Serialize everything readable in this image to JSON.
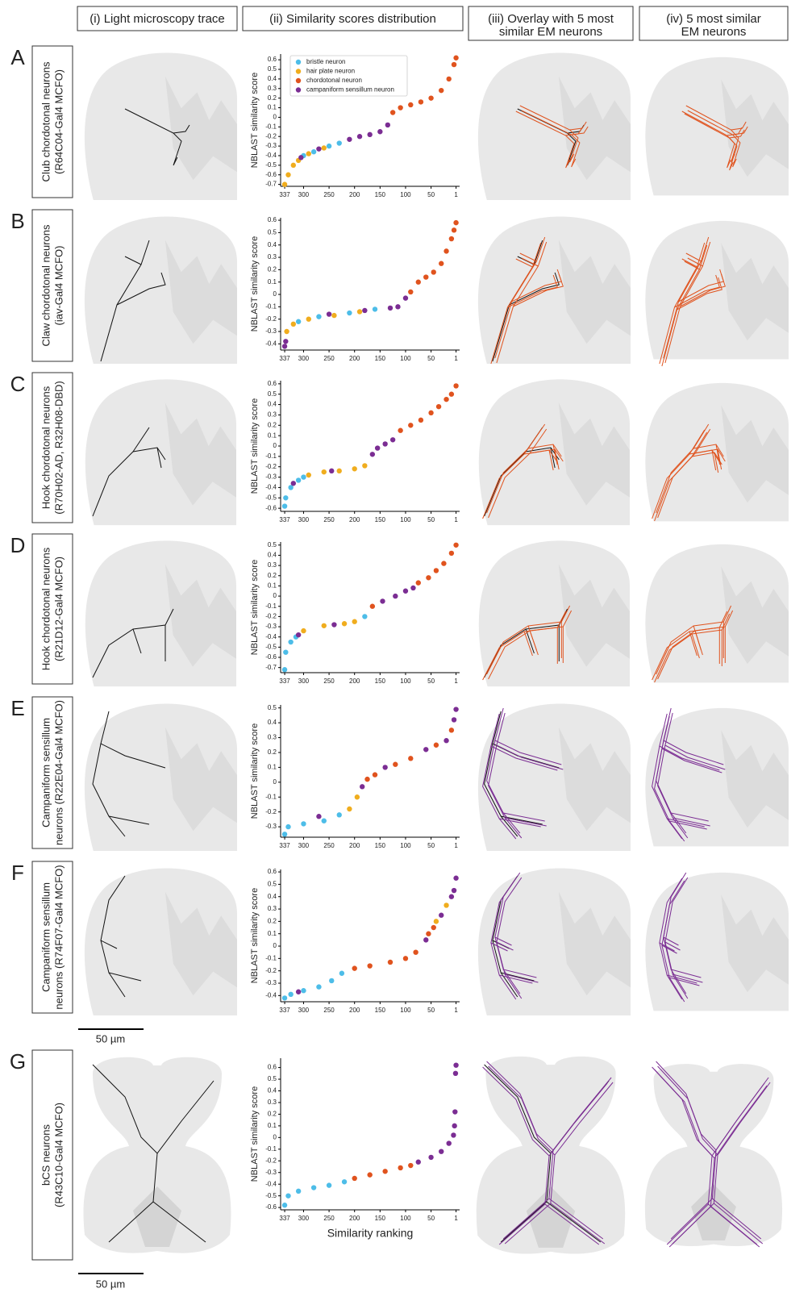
{
  "headers": [
    {
      "lines": [
        "(i) Light microscopy trace"
      ]
    },
    {
      "lines": [
        "(ii) Similarity scores distribution"
      ]
    },
    {
      "lines": [
        "(iii) Overlay with 5 most",
        "similar EM neurons"
      ]
    },
    {
      "lines": [
        "(iv) 5 most similar",
        "EM neurons"
      ]
    }
  ],
  "rows": [
    {
      "letter": "A",
      "lines": [
        "Club chordotonal neurons",
        "(R64C04-Gal4 MCFO)"
      ]
    },
    {
      "letter": "B",
      "lines": [
        "Claw chordotonal neurons",
        "(iav-Gal4 MCFO)"
      ]
    },
    {
      "letter": "C",
      "lines": [
        "Hook chordotonal neurons",
        "(R70H02-AD, R32H08-DBD)"
      ]
    },
    {
      "letter": "D",
      "lines": [
        "Hook chordotonal neurons",
        "(R21D12-Gal4 MCFO)"
      ]
    },
    {
      "letter": "E",
      "lines": [
        "Campaniform sensillum",
        "neurons (R22E04-Gal4 MCFO)"
      ]
    },
    {
      "letter": "F",
      "lines": [
        "Campaniform sensillum",
        "neurons (R74F07-Gal4 MCFO)"
      ]
    },
    {
      "letter": "G",
      "lines": [
        "bCS neurons",
        "(R43C10-Gal4 MCFO)"
      ]
    }
  ],
  "scale_bars": [
    "50 µm",
    "50 µm"
  ],
  "chart_data": [
    {
      "type": "scatter",
      "y_label": "NBLAST similarity score",
      "legend": "upper left",
      "xlim": [
        345,
        -6
      ],
      "xticks": [
        337,
        300,
        250,
        200,
        150,
        100,
        50,
        1
      ],
      "ylim": [
        -0.72,
        0.66
      ],
      "yticks": [
        -0.7,
        -0.6,
        -0.5,
        -0.4,
        -0.3,
        -0.2,
        -0.1,
        0.0,
        0.1,
        0.2,
        0.3,
        0.4,
        0.5,
        0.6
      ],
      "series": [
        {
          "name": "bristle neuron",
          "color": "#4dbde8",
          "x": [
            300,
            280,
            250,
            230
          ],
          "values": [
            -0.4,
            -0.36,
            -0.3,
            -0.27
          ]
        },
        {
          "name": "hair plate neuron",
          "color": "#f0ad1e",
          "x": [
            337,
            330,
            320,
            310,
            290,
            260
          ],
          "values": [
            -0.7,
            -0.6,
            -0.5,
            -0.45,
            -0.38,
            -0.32
          ]
        },
        {
          "name": "chordotonal neuron",
          "color": "#e0531e",
          "x": [
            125,
            110,
            90,
            70,
            50,
            30,
            15,
            5,
            1
          ],
          "values": [
            0.05,
            0.1,
            0.13,
            0.16,
            0.2,
            0.28,
            0.4,
            0.55,
            0.62
          ]
        },
        {
          "name": "campaniform sensillum neuron",
          "color": "#7b2d93",
          "x": [
            305,
            270,
            210,
            190,
            170,
            150,
            135
          ],
          "values": [
            -0.42,
            -0.33,
            -0.23,
            -0.2,
            -0.18,
            -0.15,
            -0.08
          ]
        }
      ]
    },
    {
      "type": "scatter",
      "y_label": "NBLAST similarity score",
      "xlim": [
        345,
        -6
      ],
      "xticks": [
        337,
        300,
        250,
        200,
        150,
        100,
        50,
        1
      ],
      "ylim": [
        -0.45,
        0.62
      ],
      "yticks": [
        -0.4,
        -0.3,
        -0.2,
        -0.1,
        0.0,
        0.1,
        0.2,
        0.3,
        0.4,
        0.5,
        0.6
      ],
      "series": [
        {
          "color": "#4dbde8",
          "x": [
            310,
            270,
            210,
            160
          ],
          "values": [
            -0.22,
            -0.18,
            -0.15,
            -0.12
          ]
        },
        {
          "color": "#f0ad1e",
          "x": [
            333,
            320,
            290,
            240,
            190
          ],
          "values": [
            -0.3,
            -0.24,
            -0.2,
            -0.17,
            -0.14
          ]
        },
        {
          "color": "#e0531e",
          "x": [
            90,
            75,
            60,
            45,
            30,
            20,
            10,
            5,
            1
          ],
          "values": [
            0.02,
            0.1,
            0.14,
            0.18,
            0.25,
            0.35,
            0.45,
            0.52,
            0.58
          ]
        },
        {
          "color": "#7b2d93",
          "x": [
            337,
            335,
            250,
            180,
            130,
            115,
            100
          ],
          "values": [
            -0.42,
            -0.38,
            -0.16,
            -0.13,
            -0.11,
            -0.1,
            -0.03
          ]
        }
      ]
    },
    {
      "type": "scatter",
      "y_label": "NBLAST similarity score",
      "xlim": [
        345,
        -6
      ],
      "xticks": [
        337,
        300,
        250,
        200,
        150,
        100,
        50,
        1
      ],
      "ylim": [
        -0.63,
        0.63
      ],
      "yticks": [
        -0.6,
        -0.5,
        -0.4,
        -0.3,
        -0.2,
        -0.1,
        0.0,
        0.1,
        0.2,
        0.3,
        0.4,
        0.5,
        0.6
      ],
      "series": [
        {
          "color": "#4dbde8",
          "x": [
            337,
            335,
            325,
            310,
            300
          ],
          "values": [
            -0.58,
            -0.5,
            -0.4,
            -0.33,
            -0.3
          ]
        },
        {
          "color": "#f0ad1e",
          "x": [
            290,
            260,
            230,
            200,
            180
          ],
          "values": [
            -0.28,
            -0.25,
            -0.24,
            -0.22,
            -0.19
          ]
        },
        {
          "color": "#e0531e",
          "x": [
            110,
            90,
            70,
            50,
            35,
            20,
            10,
            1
          ],
          "values": [
            0.15,
            0.2,
            0.25,
            0.32,
            0.38,
            0.45,
            0.5,
            0.58
          ]
        },
        {
          "color": "#7b2d93",
          "x": [
            320,
            245,
            165,
            155,
            140,
            125
          ],
          "values": [
            -0.36,
            -0.24,
            -0.08,
            -0.02,
            0.02,
            0.06
          ]
        }
      ]
    },
    {
      "type": "scatter",
      "y_label": "NBLAST similarity score",
      "xlim": [
        345,
        -6
      ],
      "xticks": [
        337,
        300,
        250,
        200,
        150,
        100,
        50,
        1
      ],
      "ylim": [
        -0.75,
        0.53
      ],
      "yticks": [
        -0.7,
        -0.6,
        -0.5,
        -0.4,
        -0.3,
        -0.2,
        -0.1,
        0.0,
        0.1,
        0.2,
        0.3,
        0.4,
        0.5
      ],
      "series": [
        {
          "color": "#4dbde8",
          "x": [
            337,
            335,
            325,
            315,
            180
          ],
          "values": [
            -0.72,
            -0.55,
            -0.45,
            -0.4,
            -0.2
          ]
        },
        {
          "color": "#f0ad1e",
          "x": [
            300,
            260,
            220,
            200
          ],
          "values": [
            -0.34,
            -0.29,
            -0.27,
            -0.25
          ]
        },
        {
          "color": "#e0531e",
          "x": [
            165,
            75,
            55,
            40,
            25,
            10,
            1
          ],
          "values": [
            -0.1,
            0.13,
            0.18,
            0.25,
            0.32,
            0.42,
            0.5
          ]
        },
        {
          "color": "#7b2d93",
          "x": [
            310,
            240,
            145,
            120,
            100,
            85
          ],
          "values": [
            -0.38,
            -0.28,
            -0.05,
            0.0,
            0.05,
            0.08
          ]
        }
      ]
    },
    {
      "type": "scatter",
      "y_label": "NBLAST similarity score",
      "xlim": [
        345,
        -6
      ],
      "xticks": [
        337,
        300,
        250,
        200,
        150,
        100,
        50,
        1
      ],
      "ylim": [
        -0.37,
        0.52
      ],
      "yticks": [
        -0.3,
        -0.2,
        -0.1,
        0.0,
        0.1,
        0.2,
        0.3,
        0.4,
        0.5
      ],
      "series": [
        {
          "color": "#4dbde8",
          "x": [
            337,
            330,
            300,
            260,
            230
          ],
          "values": [
            -0.35,
            -0.3,
            -0.28,
            -0.26,
            -0.22
          ]
        },
        {
          "color": "#f0ad1e",
          "x": [
            210,
            195
          ],
          "values": [
            -0.18,
            -0.1
          ]
        },
        {
          "color": "#e0531e",
          "x": [
            175,
            160,
            120,
            90,
            40,
            10
          ],
          "values": [
            0.02,
            0.05,
            0.12,
            0.16,
            0.25,
            0.35
          ]
        },
        {
          "color": "#7b2d93",
          "x": [
            270,
            185,
            140,
            60,
            20,
            5,
            1
          ],
          "values": [
            -0.23,
            -0.03,
            0.1,
            0.22,
            0.28,
            0.42,
            0.49
          ]
        }
      ]
    },
    {
      "type": "scatter",
      "y_label": "NBLAST similarity score",
      "xlim": [
        345,
        -6
      ],
      "xticks": [
        337,
        300,
        250,
        200,
        150,
        100,
        50,
        1
      ],
      "ylim": [
        -0.45,
        0.62
      ],
      "yticks": [
        -0.4,
        -0.3,
        -0.2,
        -0.1,
        0.0,
        0.1,
        0.2,
        0.3,
        0.4,
        0.5,
        0.6
      ],
      "series": [
        {
          "color": "#4dbde8",
          "x": [
            337,
            325,
            300,
            270,
            245,
            225
          ],
          "values": [
            -0.42,
            -0.39,
            -0.36,
            -0.33,
            -0.28,
            -0.22
          ]
        },
        {
          "color": "#f0ad1e",
          "x": [
            40,
            20
          ],
          "values": [
            0.2,
            0.33
          ]
        },
        {
          "color": "#e0531e",
          "x": [
            200,
            170,
            130,
            100,
            80,
            55,
            45
          ],
          "values": [
            -0.18,
            -0.16,
            -0.13,
            -0.1,
            -0.05,
            0.1,
            0.15
          ]
        },
        {
          "color": "#7b2d93",
          "x": [
            310,
            60,
            30,
            10,
            5,
            1
          ],
          "values": [
            -0.37,
            0.05,
            0.25,
            0.4,
            0.45,
            0.55
          ]
        }
      ]
    },
    {
      "type": "scatter",
      "y_label": "NBLAST similarity score",
      "x_label": "Similarity ranking",
      "xlim": [
        345,
        -6
      ],
      "xticks": [
        337,
        300,
        250,
        200,
        150,
        100,
        50,
        1
      ],
      "ylim": [
        -0.62,
        0.68
      ],
      "yticks": [
        -0.6,
        -0.5,
        -0.4,
        -0.3,
        -0.2,
        -0.1,
        0.0,
        0.1,
        0.2,
        0.3,
        0.4,
        0.5,
        0.6
      ],
      "series": [
        {
          "color": "#4dbde8",
          "x": [
            337,
            330,
            310,
            280,
            250,
            220
          ],
          "values": [
            -0.58,
            -0.5,
            -0.46,
            -0.43,
            -0.41,
            -0.38
          ]
        },
        {
          "color": "#e0531e",
          "x": [
            200,
            170,
            140,
            110,
            90
          ],
          "values": [
            -0.35,
            -0.32,
            -0.29,
            -0.26,
            -0.24
          ]
        },
        {
          "color": "#7b2d93",
          "x": [
            75,
            50,
            30,
            15,
            6,
            4,
            3,
            2,
            1
          ],
          "values": [
            -0.21,
            -0.17,
            -0.12,
            -0.05,
            0.02,
            0.1,
            0.22,
            0.55,
            0.62
          ]
        }
      ]
    }
  ]
}
